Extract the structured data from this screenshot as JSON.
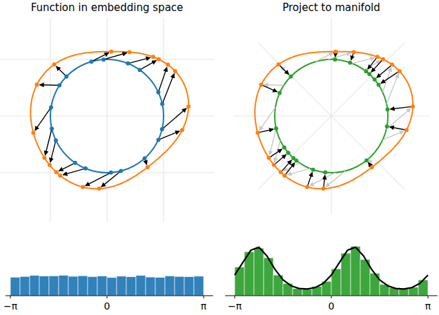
{
  "panels": [
    {
      "title": "Function in embedding space"
    },
    {
      "title": "Project to manifold"
    }
  ],
  "chart_data": [
    {
      "type": "histogram",
      "color": "#1f77b4",
      "bins": [
        -3.1416,
        -2.8274,
        -2.5133,
        -2.1991,
        -1.885,
        -1.5708,
        -1.2566,
        -0.9425,
        -0.6283,
        -0.3142,
        0,
        0.3142,
        0.6283,
        0.9425,
        1.2566,
        1.5708,
        1.885,
        2.1991,
        2.5133,
        2.8274,
        3.1416
      ],
      "counts": [
        0.152,
        0.158,
        0.166,
        0.161,
        0.163,
        0.167,
        0.159,
        0.164,
        0.157,
        0.161,
        0.149,
        0.16,
        0.155,
        0.166,
        0.153,
        0.15,
        0.163,
        0.158,
        0.156,
        0.16
      ],
      "xlim": [
        -3.3,
        3.45
      ],
      "ylim": [
        0,
        0.5
      ],
      "xticks": [
        {
          "value": -3.1416,
          "label": "−π"
        },
        0,
        {
          "value": 3.1416,
          "label": "π"
        }
      ],
      "tick_labels": "x"
    },
    {
      "type": "histogram",
      "color": "#2ca02c",
      "bins": [
        -3.1416,
        -2.8274,
        -2.5133,
        -2.1991,
        -1.885,
        -1.5708,
        -1.2566,
        -0.9425,
        -0.6283,
        -0.3142,
        0,
        0.3142,
        0.6283,
        0.9425,
        1.2566,
        1.5708,
        1.885,
        2.1991,
        2.5133,
        2.8274,
        3.1416
      ],
      "counts": [
        0.235,
        0.362,
        0.391,
        0.312,
        0.17,
        0.101,
        0.058,
        0.052,
        0.076,
        0.118,
        0.221,
        0.349,
        0.405,
        0.298,
        0.184,
        0.092,
        0.064,
        0.058,
        0.069,
        0.13
      ],
      "xlim": [
        -3.45,
        3.45
      ],
      "ylim": [
        0,
        0.5
      ],
      "xticks": [
        {
          "value": -3.1416,
          "label": "−π"
        },
        0,
        {
          "value": 3.1416,
          "label": "π"
        }
      ],
      "tick_labels": "x",
      "curve": {
        "color": "#000000",
        "x": [
          -3.1416,
          -2.8798,
          -2.618,
          -2.3562,
          -2.0944,
          -1.8326,
          -1.5708,
          -1.309,
          -1.0472,
          -0.7854,
          -0.5236,
          -0.2618,
          0,
          0.2618,
          0.5236,
          0.7854,
          1.0472,
          1.309,
          1.5708,
          1.8326,
          2.0944,
          2.3562,
          2.618,
          2.8798,
          3.1416
        ],
        "y": [
          0.169,
          0.272,
          0.373,
          0.399,
          0.327,
          0.217,
          0.13,
          0.081,
          0.059,
          0.055,
          0.067,
          0.101,
          0.169,
          0.272,
          0.373,
          0.399,
          0.327,
          0.217,
          0.13,
          0.081,
          0.059,
          0.055,
          0.067,
          0.101,
          0.169
        ]
      }
    }
  ]
}
